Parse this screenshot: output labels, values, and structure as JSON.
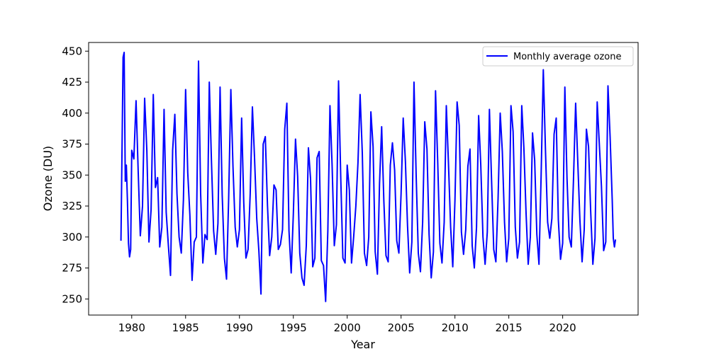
{
  "chart_data": {
    "type": "line",
    "title": "",
    "xlabel": "Year",
    "ylabel": "Ozone (DU)",
    "xlim": [
      1976,
      2027
    ],
    "ylim": [
      237,
      457
    ],
    "x_ticks": [
      1980,
      1985,
      1990,
      1995,
      2000,
      2005,
      2010,
      2015,
      2020
    ],
    "y_ticks": [
      250,
      275,
      300,
      325,
      350,
      375,
      400,
      425,
      450
    ],
    "x_tick_labels": [
      "1980",
      "1985",
      "1990",
      "1995",
      "2000",
      "2005",
      "2010",
      "2015",
      "2020"
    ],
    "y_tick_labels": [
      "250",
      "275",
      "300",
      "325",
      "350",
      "375",
      "400",
      "425",
      "450"
    ],
    "grid": false,
    "legend_position": "top-right",
    "series": [
      {
        "name": "Monthly average ozone",
        "color": "#0000ff",
        "x": [
          1979.0,
          1979.1,
          1979.2,
          1979.3,
          1979.4,
          1979.5,
          1979.6,
          1979.7,
          1979.8,
          1979.9,
          1980.0,
          1980.2,
          1980.4,
          1980.6,
          1980.8,
          1981.0,
          1981.2,
          1981.4,
          1981.6,
          1981.8,
          1982.0,
          1982.2,
          1982.4,
          1982.6,
          1982.8,
          1983.0,
          1983.2,
          1983.4,
          1983.6,
          1983.8,
          1984.0,
          1984.2,
          1984.4,
          1984.6,
          1984.8,
          1985.0,
          1985.2,
          1985.4,
          1985.6,
          1985.8,
          1986.0,
          1986.2,
          1986.4,
          1986.6,
          1986.8,
          1987.0,
          1987.2,
          1987.4,
          1987.6,
          1987.8,
          1988.0,
          1988.2,
          1988.4,
          1988.6,
          1988.8,
          1989.0,
          1989.2,
          1989.4,
          1989.6,
          1989.8,
          1990.0,
          1990.2,
          1990.4,
          1990.6,
          1990.8,
          1991.0,
          1991.2,
          1991.4,
          1991.6,
          1991.8,
          1992.0,
          1992.2,
          1992.4,
          1992.6,
          1992.8,
          1993.0,
          1993.2,
          1993.4,
          1993.6,
          1993.8,
          1994.0,
          1994.2,
          1994.4,
          1994.6,
          1994.8,
          1995.0,
          1995.2,
          1995.4,
          1995.6,
          1995.8,
          1996.0,
          1996.2,
          1996.4,
          1996.6,
          1996.8,
          1997.0,
          1997.2,
          1997.4,
          1997.6,
          1997.8,
          1998.0,
          1998.2,
          1998.4,
          1998.6,
          1998.8,
          1999.0,
          1999.2,
          1999.4,
          1999.6,
          1999.8,
          2000.0,
          2000.2,
          2000.4,
          2000.6,
          2000.8,
          2001.0,
          2001.2,
          2001.4,
          2001.6,
          2001.8,
          2002.0,
          2002.2,
          2002.4,
          2002.6,
          2002.8,
          2003.0,
          2003.2,
          2003.4,
          2003.6,
          2003.8,
          2004.0,
          2004.2,
          2004.4,
          2004.6,
          2004.8,
          2005.0,
          2005.2,
          2005.4,
          2005.6,
          2005.8,
          2006.0,
          2006.2,
          2006.4,
          2006.6,
          2006.8,
          2007.0,
          2007.2,
          2007.4,
          2007.6,
          2007.8,
          2008.0,
          2008.2,
          2008.4,
          2008.6,
          2008.8,
          2009.0,
          2009.2,
          2009.4,
          2009.6,
          2009.8,
          2010.0,
          2010.2,
          2010.4,
          2010.6,
          2010.8,
          2011.0,
          2011.2,
          2011.4,
          2011.6,
          2011.8,
          2012.0,
          2012.2,
          2012.4,
          2012.6,
          2012.8,
          2013.0,
          2013.2,
          2013.4,
          2013.6,
          2013.8,
          2014.0,
          2014.2,
          2014.4,
          2014.6,
          2014.8,
          2015.0,
          2015.2,
          2015.4,
          2015.6,
          2015.8,
          2016.0,
          2016.2,
          2016.4,
          2016.6,
          2016.8,
          2017.0,
          2017.2,
          2017.4,
          2017.6,
          2017.8,
          2018.0,
          2018.2,
          2018.4,
          2018.6,
          2018.8,
          2019.0,
          2019.2,
          2019.4,
          2019.6,
          2019.8,
          2020.0,
          2020.2,
          2020.4,
          2020.6,
          2020.8,
          2021.0,
          2021.2,
          2021.4,
          2021.6,
          2021.8,
          2022.0,
          2022.2,
          2022.4,
          2022.6,
          2022.8,
          2023.0,
          2023.2,
          2023.4,
          2023.6,
          2023.8,
          2024.0,
          2024.2,
          2024.4,
          2024.6,
          2024.7,
          2024.8,
          2024.9
        ],
        "values": [
          297,
          370,
          445,
          449,
          345,
          358,
          330,
          295,
          284,
          290,
          370,
          363,
          410,
          353,
          301,
          325,
          412,
          370,
          296,
          322,
          415,
          340,
          348,
          292,
          308,
          403,
          320,
          293,
          269,
          370,
          399,
          335,
          300,
          287,
          330,
          419,
          352,
          318,
          265,
          296,
          300,
          442,
          335,
          279,
          302,
          298,
          425,
          362,
          305,
          286,
          311,
          421,
          334,
          283,
          266,
          331,
          419,
          357,
          308,
          292,
          306,
          396,
          328,
          283,
          290,
          335,
          405,
          364,
          315,
          289,
          254,
          375,
          381,
          325,
          285,
          300,
          342,
          338,
          290,
          294,
          306,
          387,
          408,
          305,
          271,
          318,
          379,
          349,
          287,
          267,
          261,
          293,
          372,
          347,
          276,
          283,
          364,
          369,
          281,
          277,
          248,
          305,
          406,
          358,
          293,
          310,
          426,
          348,
          283,
          279,
          358,
          338,
          279,
          300,
          325,
          360,
          415,
          368,
          287,
          277,
          300,
          401,
          373,
          288,
          270,
          343,
          389,
          329,
          285,
          280,
          358,
          376,
          354,
          297,
          287,
          335,
          396,
          361,
          309,
          271,
          296,
          425,
          349,
          287,
          272,
          312,
          393,
          371,
          302,
          267,
          288,
          418,
          360,
          295,
          279,
          312,
          406,
          360,
          308,
          276,
          330,
          409,
          390,
          304,
          286,
          306,
          357,
          371,
          293,
          275,
          308,
          398,
          358,
          300,
          278,
          304,
          403,
          346,
          290,
          280,
          331,
          400,
          369,
          312,
          280,
          299,
          406,
          385,
          308,
          283,
          296,
          406,
          372,
          319,
          278,
          300,
          384,
          362,
          302,
          278,
          349,
          435,
          371,
          312,
          299,
          315,
          383,
          396,
          314,
          282,
          295,
          421,
          348,
          300,
          292,
          345,
          408,
          361,
          314,
          280,
          306,
          387,
          373,
          321,
          278,
          299,
          409,
          375,
          341,
          289,
          296,
          422,
          381,
          330,
          299,
          292,
          298
        ]
      }
    ]
  }
}
